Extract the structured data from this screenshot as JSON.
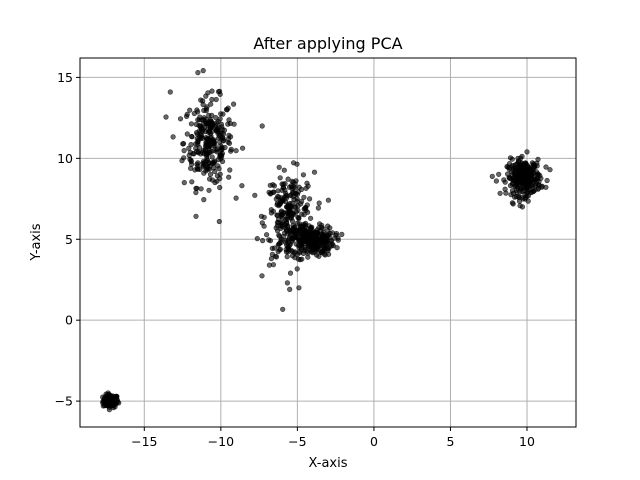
{
  "chart_data": {
    "type": "scatter",
    "title": "After applying PCA",
    "xlabel": "X-axis",
    "ylabel": "Y-axis",
    "xlim": [
      -19.2,
      13.2
    ],
    "ylim": [
      -6.6,
      16.2
    ],
    "xticks": [
      -15,
      -10,
      -5,
      0,
      5,
      10
    ],
    "yticks": [
      -5,
      0,
      5,
      10,
      15
    ],
    "xtick_labels": [
      "−15",
      "−10",
      "−5",
      "0",
      "5",
      "10"
    ],
    "ytick_labels": [
      "−5",
      "0",
      "5",
      "10",
      "15"
    ],
    "grid": true,
    "marker_color": "#000000",
    "marker_alpha": 0.6,
    "clusters": [
      {
        "center": [
          -17.2,
          -5.0
        ],
        "spread": [
          0.25,
          0.2
        ],
        "count": 120
      },
      {
        "center": [
          -10.8,
          11.0
        ],
        "spread": [
          0.8,
          1.35
        ],
        "count": 280
      },
      {
        "center": [
          -5.5,
          6.3
        ],
        "spread": [
          0.8,
          1.4
        ],
        "count": 260
      },
      {
        "center": [
          -4.0,
          4.9
        ],
        "spread": [
          0.7,
          0.45
        ],
        "count": 240
      },
      {
        "center": [
          9.8,
          8.8
        ],
        "spread": [
          0.55,
          0.55
        ],
        "count": 280
      }
    ],
    "outliers": [
      [
        -13.3,
        14.1
      ],
      [
        -11.5,
        15.3
      ],
      [
        -7.3,
        12.0
      ],
      [
        -10.1,
        6.1
      ],
      [
        -6.5,
        8.3
      ],
      [
        -2.1,
        5.3
      ],
      [
        -5.5,
        1.9
      ],
      [
        -4.9,
        2.0
      ],
      [
        10.0,
        10.4
      ],
      [
        9.7,
        7.0
      ],
      [
        8.0,
        8.6
      ],
      [
        11.5,
        9.3
      ],
      [
        -6.7,
        3.8
      ]
    ]
  }
}
